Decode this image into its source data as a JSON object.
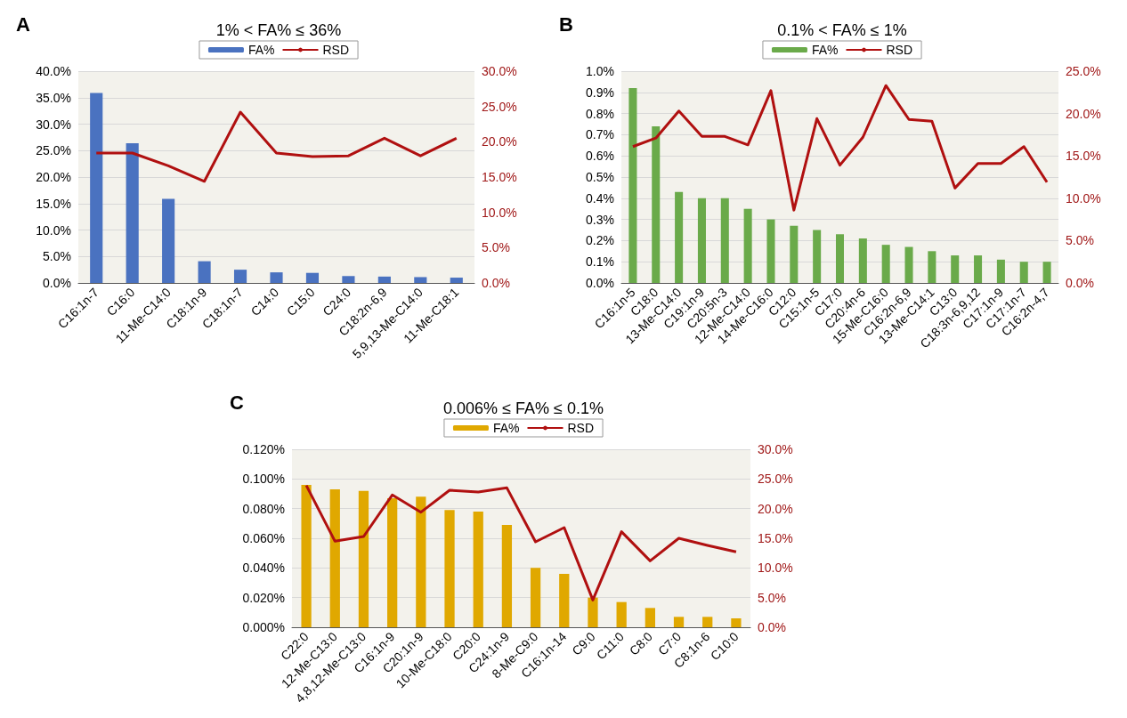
{
  "chart_data": [
    {
      "type": "bar",
      "title": "1% < FA% ≤ 36%",
      "annotations": [
        "A"
      ],
      "categories": [
        "C16:1n-7",
        "C16:0",
        "11-Me-C14:0",
        "C18:1n-9",
        "C18:1n-7",
        "C14:0",
        "C15:0",
        "C24:0",
        "C18:2n-6,9",
        "5,9,13-Me-C14:0",
        "11-Me-C18:1"
      ],
      "series": [
        {
          "name": "FA%",
          "color": "#4a72c0",
          "values": [
            35.9,
            26.4,
            15.9,
            4.1,
            2.5,
            2.0,
            1.9,
            1.3,
            1.2,
            1.1,
            1.0
          ]
        },
        {
          "name": "RSD",
          "type": "line",
          "axis": "y2",
          "color": "#b01010",
          "values": [
            18.4,
            18.4,
            16.6,
            14.4,
            24.2,
            18.4,
            17.9,
            18.0,
            20.5,
            18.0,
            20.5
          ]
        }
      ],
      "ylim": [
        0,
        40
      ],
      "yticks": [
        {
          "value": 0,
          "label": "0.0%"
        },
        {
          "value": 5,
          "label": "5.0%"
        },
        {
          "value": 10,
          "label": "10.0%"
        },
        {
          "value": 15,
          "label": "15.0%"
        },
        {
          "value": 20,
          "label": "20.0%"
        },
        {
          "value": 25,
          "label": "25.0%"
        },
        {
          "value": 30,
          "label": "30.0%"
        },
        {
          "value": 35,
          "label": "35.0%"
        },
        {
          "value": 40,
          "label": "40.0%"
        }
      ],
      "y2lim": [
        0,
        30
      ],
      "y2ticks": [
        {
          "value": 0,
          "label": "0.0%"
        },
        {
          "value": 5,
          "label": "5.0%"
        },
        {
          "value": 10,
          "label": "10.0%"
        },
        {
          "value": 15,
          "label": "15.0%"
        },
        {
          "value": 20,
          "label": "20.0%"
        },
        {
          "value": 25,
          "label": "25.0%"
        },
        {
          "value": 30,
          "label": "30.0%"
        }
      ],
      "grid": "y",
      "legend": "top",
      "marker": "none"
    },
    {
      "type": "bar",
      "title": "0.1% < FA% ≤ 1%",
      "annotations": [
        "B"
      ],
      "categories": [
        "C16:1n-5",
        "C18:0",
        "13-Me-C14:0",
        "C19:1n-9",
        "C20:5n-3",
        "12-Me-C14:0",
        "14-Me-C16:0",
        "C12:0",
        "C15:1n-5",
        "C17:0",
        "C20:4n-6",
        "15-Me-C16:0",
        "C16:2n-6,9",
        "13-Me-C14:1",
        "C13:0",
        "C18:3n-6,9,12",
        "C17:1n-9",
        "C17:1n-7",
        "C16:2n-4,7"
      ],
      "series": [
        {
          "name": "FA%",
          "color": "#6aaa4a",
          "values": [
            0.92,
            0.74,
            0.43,
            0.4,
            0.4,
            0.35,
            0.3,
            0.27,
            0.25,
            0.23,
            0.21,
            0.18,
            0.17,
            0.15,
            0.13,
            0.13,
            0.11,
            0.1,
            0.1
          ]
        },
        {
          "name": "RSD",
          "type": "line",
          "axis": "y2",
          "color": "#b01010",
          "values": [
            16.1,
            17.1,
            20.3,
            17.3,
            17.3,
            16.3,
            22.7,
            8.6,
            19.4,
            13.9,
            17.2,
            23.3,
            19.3,
            19.1,
            11.2,
            14.1,
            14.1,
            16.1,
            11.9
          ]
        }
      ],
      "ylim": [
        0,
        1
      ],
      "yticks": [
        {
          "value": 0,
          "label": "0.0%"
        },
        {
          "value": 0.1,
          "label": "0.1%"
        },
        {
          "value": 0.2,
          "label": "0.2%"
        },
        {
          "value": 0.3,
          "label": "0.3%"
        },
        {
          "value": 0.4,
          "label": "0.4%"
        },
        {
          "value": 0.5,
          "label": "0.5%"
        },
        {
          "value": 0.6,
          "label": "0.6%"
        },
        {
          "value": 0.7,
          "label": "0.7%"
        },
        {
          "value": 0.8,
          "label": "0.8%"
        },
        {
          "value": 0.9,
          "label": "0.9%"
        },
        {
          "value": 1,
          "label": "1.0%"
        }
      ],
      "y2lim": [
        0,
        25
      ],
      "y2ticks": [
        {
          "value": 0,
          "label": "0.0%"
        },
        {
          "value": 5,
          "label": "5.0%"
        },
        {
          "value": 10,
          "label": "10.0%"
        },
        {
          "value": 15,
          "label": "15.0%"
        },
        {
          "value": 20,
          "label": "20.0%"
        },
        {
          "value": 25,
          "label": "25.0%"
        }
      ],
      "grid": "y",
      "legend": "top",
      "marker": "none"
    },
    {
      "type": "bar",
      "title": "0.006% ≤ FA% ≤ 0.1%",
      "annotations": [
        "C"
      ],
      "categories": [
        "C22:0",
        "12-Me-C13:0",
        "4,8,12-Me-C13:0",
        "C16:1n-9",
        "C20:1n-9",
        "10-Me-C18:0",
        "C20:0",
        "C24:1n-9",
        "8-Me-C9:0",
        "C16:1n-14",
        "C9:0",
        "C11:0",
        "C8:0",
        "C7:0",
        "C8:1n-6",
        "C10:0"
      ],
      "series": [
        {
          "name": "FA%",
          "color": "#e0a800",
          "values": [
            0.096,
            0.093,
            0.092,
            0.087,
            0.088,
            0.079,
            0.078,
            0.069,
            0.04,
            0.036,
            0.02,
            0.017,
            0.013,
            0.007,
            0.007,
            0.006
          ]
        },
        {
          "name": "RSD",
          "type": "line",
          "axis": "y2",
          "color": "#b01010",
          "values": [
            23.9,
            14.5,
            15.3,
            22.3,
            19.4,
            23.1,
            22.8,
            23.5,
            14.4,
            16.8,
            4.6,
            16.1,
            11.2,
            15.0,
            13.8,
            12.7
          ]
        }
      ],
      "ylim": [
        0,
        0.12
      ],
      "yticks": [
        {
          "value": 0,
          "label": "0.000%"
        },
        {
          "value": 0.02,
          "label": "0.020%"
        },
        {
          "value": 0.04,
          "label": "0.040%"
        },
        {
          "value": 0.06,
          "label": "0.060%"
        },
        {
          "value": 0.08,
          "label": "0.080%"
        },
        {
          "value": 0.1,
          "label": "0.100%"
        },
        {
          "value": 0.12,
          "label": "0.120%"
        }
      ],
      "y2lim": [
        0,
        30
      ],
      "y2ticks": [
        {
          "value": 0,
          "label": "0.0%"
        },
        {
          "value": 5,
          "label": "5.0%"
        },
        {
          "value": 10,
          "label": "10.0%"
        },
        {
          "value": 15,
          "label": "15.0%"
        },
        {
          "value": 20,
          "label": "20.0%"
        },
        {
          "value": 25,
          "label": "25.0%"
        },
        {
          "value": 30,
          "label": "30.0%"
        }
      ],
      "grid": "y",
      "legend": "top",
      "marker": "none"
    }
  ]
}
